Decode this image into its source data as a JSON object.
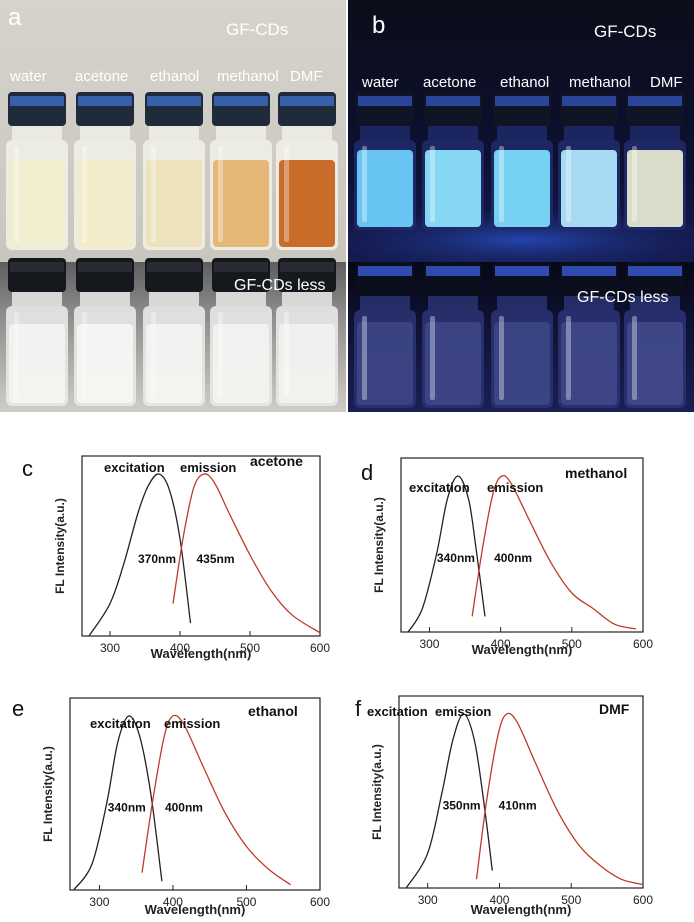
{
  "photo_a": {
    "panel_letter": "a",
    "title": "GF-CDs",
    "solvents": [
      "water",
      "acetone",
      "ethanol",
      "methanol",
      "DMF"
    ],
    "bottom_label": "GF-CDs less"
  },
  "photo_b": {
    "panel_letter": "b",
    "title": "GF-CDs",
    "solvents": [
      "water",
      "acetone",
      "ethanol",
      "methanol",
      "DMF"
    ],
    "bottom_label": "GF-CDs less"
  },
  "colors": {
    "excitation_curve": "#222222",
    "emission_curve": "#c0392b",
    "vial_a_liquid": [
      "#f1eecf",
      "#f2ecc8",
      "#ede2b8",
      "#e6b572",
      "#c8651f"
    ],
    "vial_b_glow": [
      "#6fd2ff",
      "#8fe6ff",
      "#7fe0ff",
      "#b3e9ff",
      "#e9ecd0"
    ]
  },
  "chart_data": [
    {
      "panel": "c",
      "type": "line",
      "title": "acetone",
      "xlabel": "Wavelength(nm)",
      "ylabel": "FL Intensity(a.u.)",
      "xlim": [
        260,
        600
      ],
      "xticks": [
        300,
        400,
        500,
        600
      ],
      "series": [
        {
          "name": "excitation",
          "peak_label": "370nm",
          "x": [
            270,
            300,
            320,
            340,
            355,
            370,
            385,
            400,
            415
          ],
          "y": [
            0.0,
            0.2,
            0.45,
            0.76,
            0.93,
            1.0,
            0.9,
            0.6,
            0.08
          ]
        },
        {
          "name": "emission",
          "peak_label": "435nm",
          "x": [
            390,
            405,
            420,
            435,
            450,
            470,
            500,
            530,
            560,
            600
          ],
          "y": [
            0.2,
            0.62,
            0.92,
            1.0,
            0.94,
            0.76,
            0.5,
            0.28,
            0.13,
            0.02
          ]
        }
      ]
    },
    {
      "panel": "d",
      "type": "line",
      "title": "methanol",
      "xlabel": "Wavelength(nm)",
      "ylabel": "FL Intensity(a.u.)",
      "xlim": [
        260,
        600
      ],
      "xticks": [
        300,
        400,
        500,
        600
      ],
      "series": [
        {
          "name": "excitation",
          "peak_label": "340nm",
          "x": [
            270,
            290,
            310,
            325,
            340,
            355,
            365,
            378
          ],
          "y": [
            0.0,
            0.15,
            0.5,
            0.85,
            1.0,
            0.85,
            0.55,
            0.1
          ]
        },
        {
          "name": "emission",
          "peak_label": "400nm",
          "x": [
            360,
            375,
            390,
            402,
            415,
            440,
            470,
            500,
            530,
            560,
            590
          ],
          "y": [
            0.1,
            0.55,
            0.9,
            1.0,
            0.95,
            0.72,
            0.45,
            0.25,
            0.15,
            0.05,
            0.02
          ]
        }
      ]
    },
    {
      "panel": "e",
      "type": "line",
      "title": "ethanol",
      "xlabel": "Wavelength(nm)",
      "ylabel": "FL Intensity(a.u.)",
      "xlim": [
        260,
        600
      ],
      "xticks": [
        300,
        400,
        500,
        600
      ],
      "series": [
        {
          "name": "excitation",
          "peak_label": "340nm",
          "x": [
            265,
            290,
            310,
            325,
            340,
            355,
            370,
            385
          ],
          "y": [
            0.0,
            0.15,
            0.5,
            0.85,
            1.0,
            0.88,
            0.55,
            0.05
          ]
        },
        {
          "name": "emission",
          "peak_label": "400nm",
          "x": [
            358,
            372,
            388,
            400,
            415,
            440,
            470,
            500,
            530,
            560
          ],
          "y": [
            0.1,
            0.5,
            0.88,
            1.0,
            0.95,
            0.72,
            0.45,
            0.25,
            0.12,
            0.03
          ]
        }
      ]
    },
    {
      "panel": "f",
      "type": "line",
      "title": "DMF",
      "xlabel": "Wavelength(nm)",
      "ylabel": "FL Intensity(a.u.)",
      "xlim": [
        260,
        600
      ],
      "xticks": [
        300,
        400,
        500,
        600
      ],
      "series": [
        {
          "name": "excitation",
          "peak_label": "350nm",
          "x": [
            270,
            300,
            320,
            335,
            350,
            365,
            378,
            390
          ],
          "y": [
            0.0,
            0.2,
            0.55,
            0.85,
            1.0,
            0.85,
            0.5,
            0.1
          ]
        },
        {
          "name": "emission",
          "peak_label": "410nm",
          "x": [
            368,
            382,
            398,
            410,
            425,
            450,
            480,
            510,
            540,
            570,
            600
          ],
          "y": [
            0.05,
            0.5,
            0.88,
            1.0,
            0.95,
            0.72,
            0.45,
            0.25,
            0.13,
            0.05,
            0.02
          ]
        }
      ]
    }
  ]
}
